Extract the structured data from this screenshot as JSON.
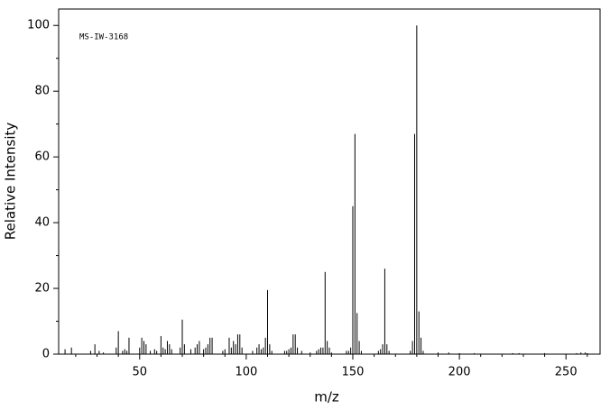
{
  "chart_data": {
    "type": "stick",
    "annotation": "MS-IW-3168",
    "x_label": "m/z",
    "y_label": "Relative Intensity",
    "color": "#000000",
    "xlim": [
      12,
      266
    ],
    "ylim": [
      0,
      105
    ],
    "xticks": [
      50,
      100,
      150,
      200,
      250
    ],
    "xminorticks": [
      20,
      30,
      40,
      60,
      70,
      80,
      90,
      110,
      120,
      130,
      140,
      160,
      170,
      180,
      190,
      210,
      220,
      230,
      240,
      260
    ],
    "yticks": [
      0,
      20,
      40,
      60,
      80,
      100
    ],
    "yminorticks": [
      10,
      30,
      50,
      70,
      90
    ],
    "x": [
      15,
      18,
      27,
      29,
      31,
      33,
      39,
      40,
      42,
      43,
      44,
      45,
      50,
      51,
      52,
      53,
      55,
      57,
      58,
      60,
      61,
      62,
      63,
      64,
      65,
      69,
      70,
      71,
      74,
      76,
      77,
      78,
      80,
      81,
      82,
      83,
      84,
      89,
      90,
      92,
      93,
      94,
      95,
      96,
      97,
      98,
      103,
      105,
      106,
      107,
      108,
      109,
      110,
      111,
      112,
      118,
      119,
      120,
      121,
      122,
      123,
      124,
      126,
      130,
      133,
      134,
      135,
      136,
      137,
      138,
      139,
      140,
      147,
      148,
      149,
      150,
      151,
      152,
      153,
      154,
      162,
      163,
      164,
      165,
      166,
      167,
      177,
      178,
      179,
      180,
      181,
      182,
      183,
      190,
      195,
      200,
      207,
      225,
      228,
      240,
      255,
      257,
      259,
      260
    ],
    "values": [
      1.5,
      2,
      1,
      3,
      1,
      0.5,
      2,
      7,
      1,
      1.5,
      1,
      5,
      2,
      5,
      4,
      3,
      1,
      1.5,
      1,
      5.5,
      2,
      1.5,
      4,
      3,
      1.5,
      2,
      10.5,
      3,
      1.5,
      2,
      3,
      4,
      1.5,
      2,
      3,
      5,
      5,
      1,
      1.5,
      5,
      2,
      4,
      3,
      6,
      6,
      2,
      1,
      2,
      3,
      1.5,
      2,
      5,
      19.5,
      3,
      1,
      1,
      1,
      1.5,
      2,
      6,
      6,
      2,
      1,
      0.5,
      1,
      1.5,
      2,
      2,
      25,
      4,
      2,
      0.5,
      1,
      1,
      2,
      45,
      67,
      12.5,
      4,
      1,
      1,
      1.5,
      3,
      26,
      3,
      1,
      1,
      4,
      67,
      100,
      13,
      5,
      1,
      0.5,
      0.5,
      0.3,
      0.3,
      0.3,
      0.3,
      0.3,
      0.3,
      0.5,
      0.5,
      0.3
    ]
  }
}
